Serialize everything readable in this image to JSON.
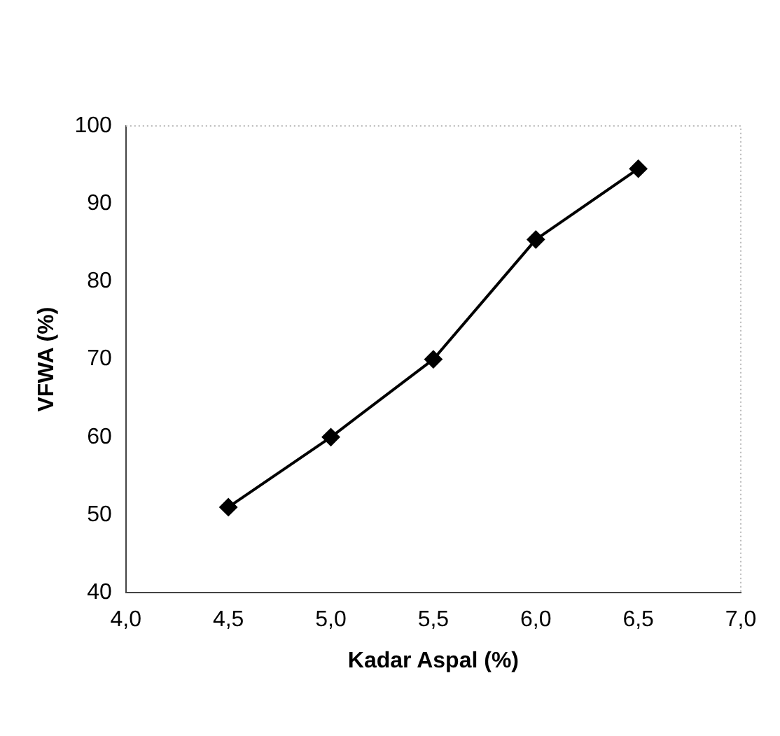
{
  "chart_data": {
    "type": "line",
    "xlabel": "Kadar Aspal (%)",
    "ylabel": "VFWA (%)",
    "x": [
      4.5,
      5.0,
      5.5,
      6.0,
      6.5
    ],
    "series": [
      {
        "color": "#000000",
        "values": [
          51,
          60,
          70,
          85.4,
          94.5
        ]
      }
    ],
    "xlim": [
      4.0,
      7.0
    ],
    "xticks": [
      {
        "value": 4.0,
        "label": "4,0"
      },
      {
        "value": 4.5,
        "label": "4,5"
      },
      {
        "value": 5.0,
        "label": "5,0"
      },
      {
        "value": 5.5,
        "label": "5,5"
      },
      {
        "value": 6.0,
        "label": "6,0"
      },
      {
        "value": 6.5,
        "label": "6,5"
      },
      {
        "value": 7.0,
        "label": "7,0"
      }
    ],
    "ylim": [
      40,
      100
    ],
    "yticks": [
      40,
      50,
      60,
      70,
      80,
      90,
      100
    ],
    "marker": "diamond",
    "line_style": "solid",
    "grid": false,
    "legend": false
  }
}
